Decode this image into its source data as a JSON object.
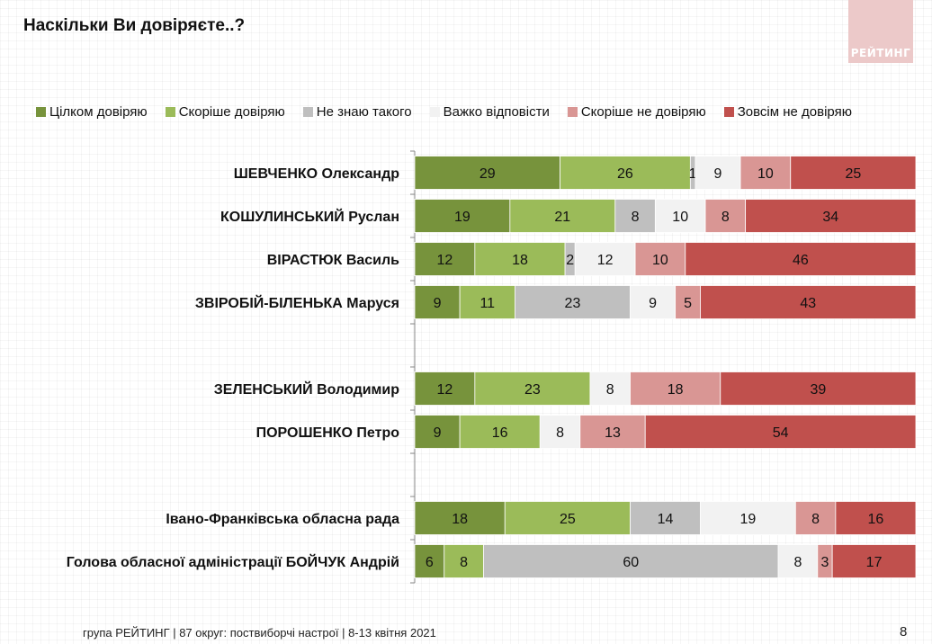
{
  "header": {
    "title": "Наскільки Ви довіряєте..?",
    "logo_text": "РЕЙТИНГ"
  },
  "footer": {
    "text": "група РЕЙТИНГ  | 87 округ: поствиборчі настрої | 8-13 квітня 2021",
    "page_number": "8"
  },
  "chart_data": {
    "type": "bar",
    "orientation": "horizontal",
    "stacked": "100%",
    "title": "Наскільки Ви довіряєте..?",
    "legend_position": "top",
    "categories": [
      "ШЕВЧЕНКО Олександр",
      "КОШУЛИНСЬКИЙ Руслан",
      "ВІРАСТЮК Василь",
      "ЗВІРОБІЙ-БІЛЕНЬКА Маруся",
      "",
      "ЗЕЛЕНСЬКИЙ Володимир",
      "ПОРОШЕНКО Петро",
      "",
      "Івано-Франківська обласна рада",
      "Голова обласної адміністрації БОЙЧУК Андрій"
    ],
    "series": [
      {
        "name": "Цілком довіряю",
        "color": "#77933c",
        "values": [
          29,
          19,
          12,
          9,
          null,
          12,
          9,
          null,
          18,
          6
        ]
      },
      {
        "name": "Скоріше довіряю",
        "color": "#9bbb59",
        "values": [
          26,
          21,
          18,
          11,
          null,
          23,
          16,
          null,
          25,
          8
        ]
      },
      {
        "name": "Не знаю такого",
        "color": "#bfbfbf",
        "values": [
          1,
          8,
          2,
          23,
          null,
          0,
          0,
          null,
          14,
          60
        ]
      },
      {
        "name": "Важко відповісти",
        "color": "#f2f2f2",
        "values": [
          9,
          10,
          12,
          9,
          null,
          8,
          8,
          null,
          19,
          8
        ]
      },
      {
        "name": "Скоріше не довіряю",
        "color": "#d99694",
        "values": [
          10,
          8,
          10,
          5,
          null,
          18,
          13,
          null,
          8,
          3
        ]
      },
      {
        "name": "Зовсім не довіряю",
        "color": "#c0504d",
        "values": [
          25,
          34,
          46,
          43,
          null,
          39,
          54,
          null,
          16,
          17
        ]
      }
    ],
    "xlim": [
      0,
      100
    ],
    "units": "%"
  }
}
